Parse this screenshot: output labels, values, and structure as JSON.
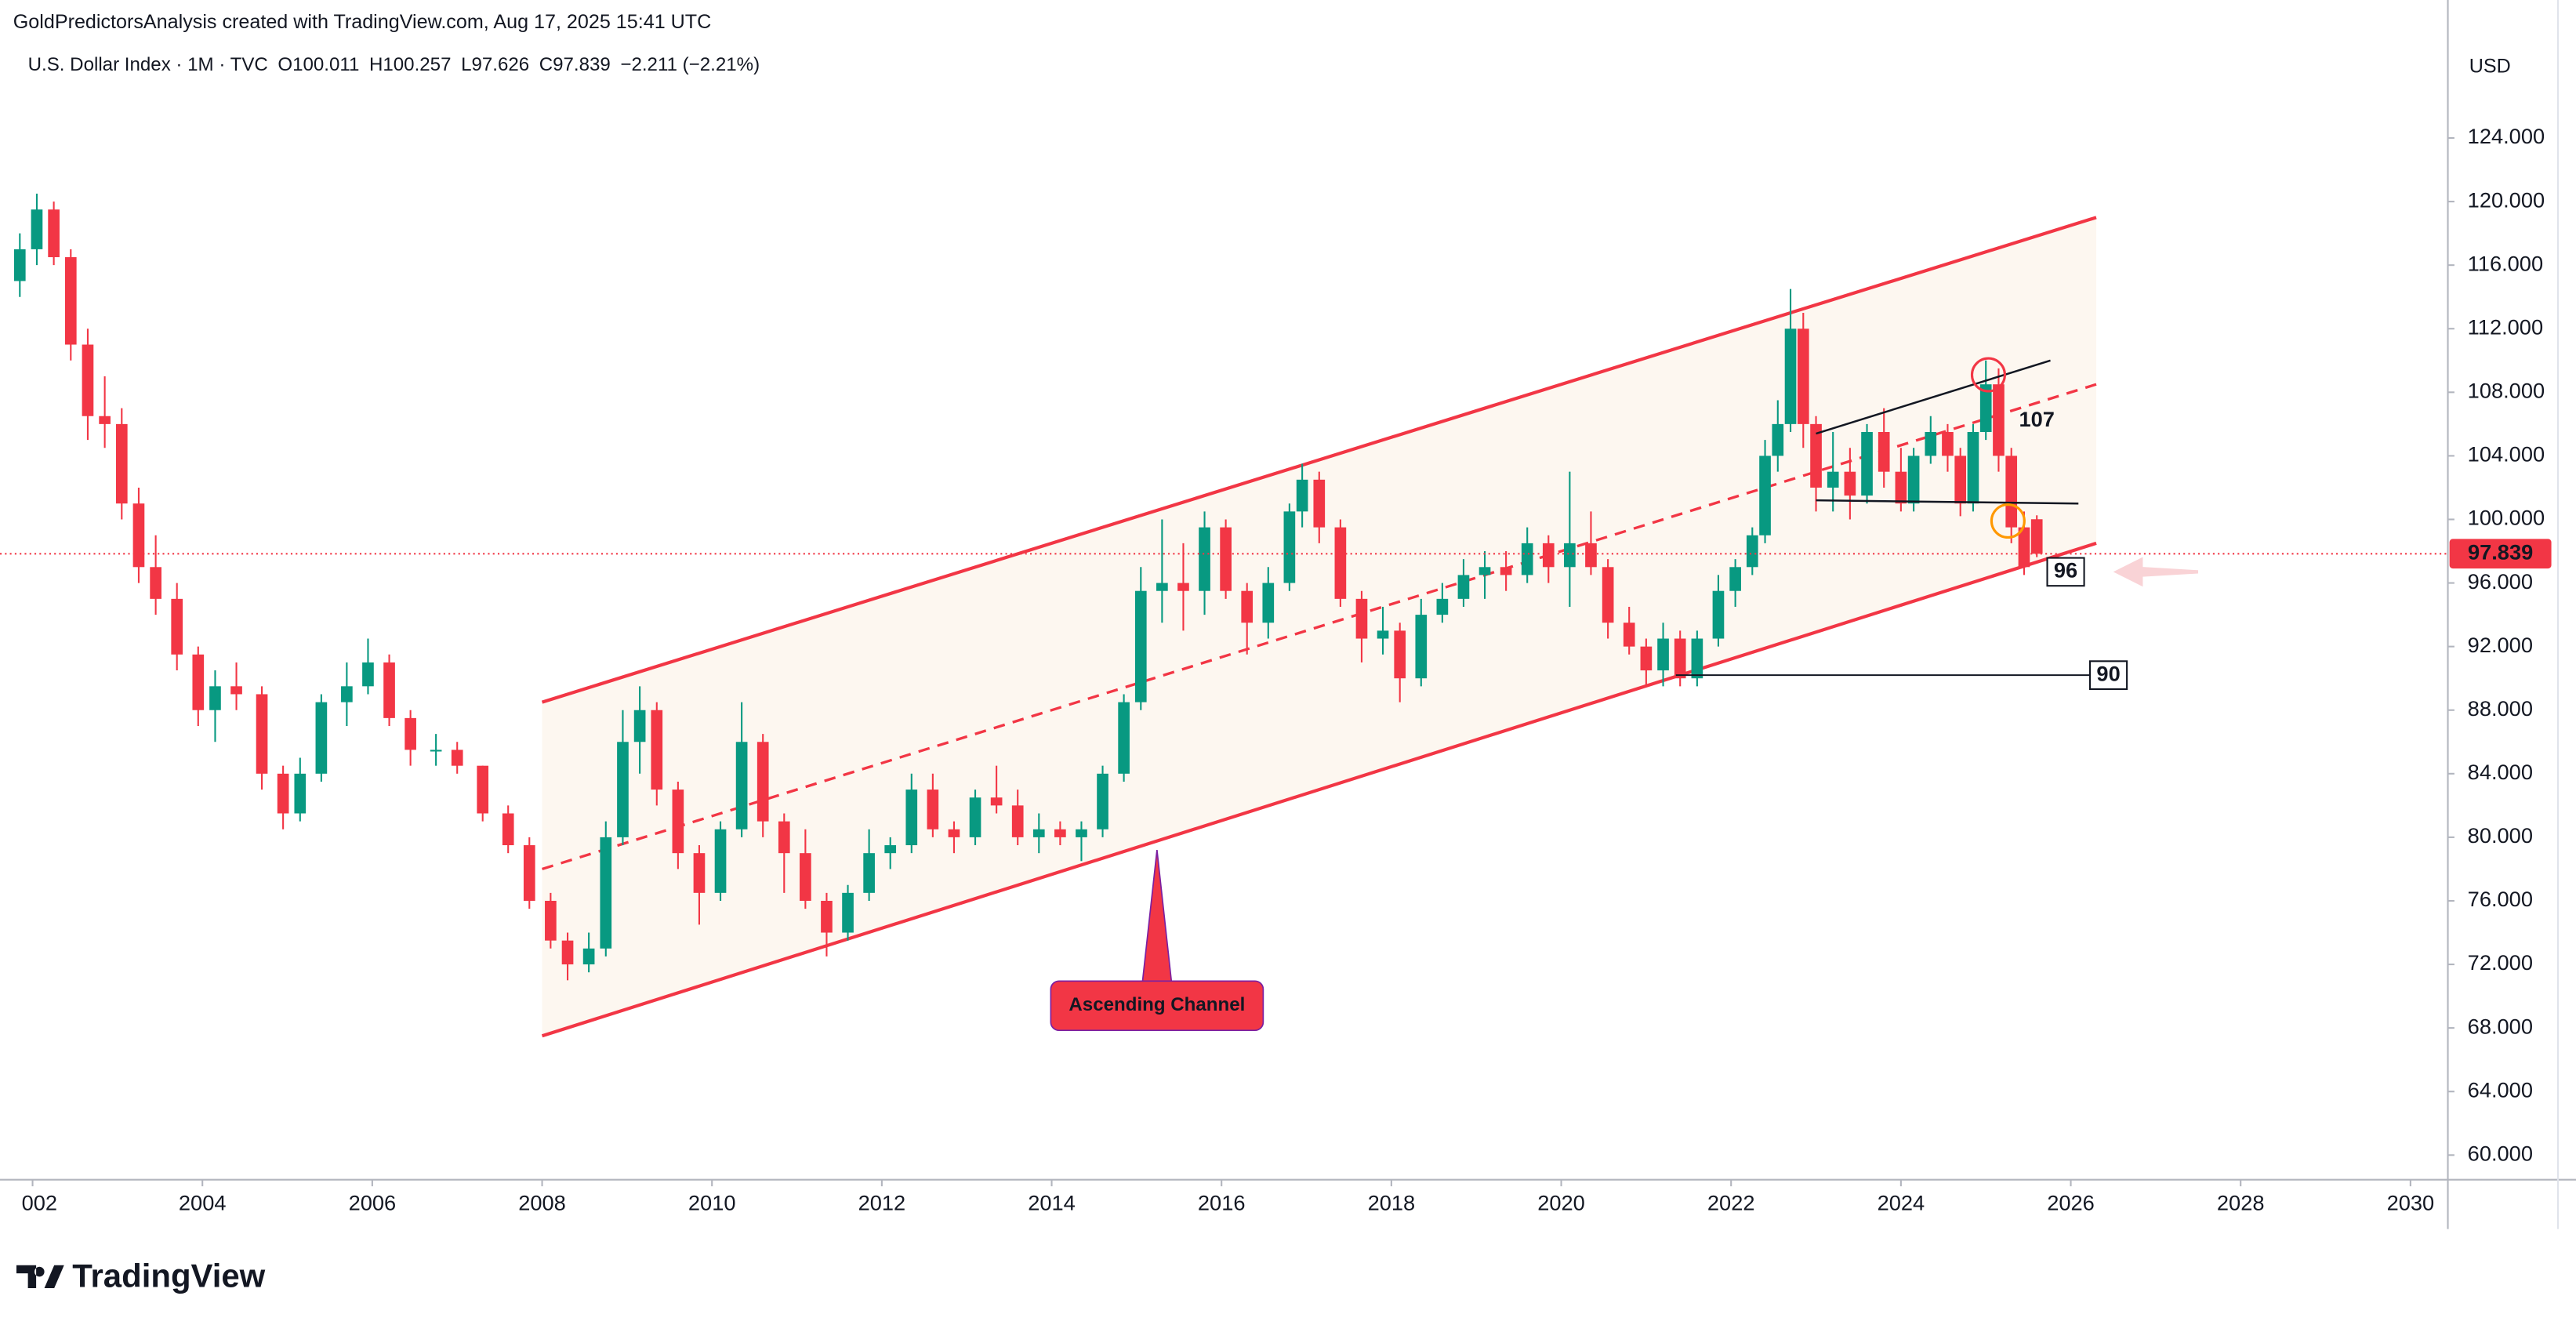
{
  "chart_data": {
    "type": "candlestick",
    "header": "GoldPredictorsAnalysis created with TradingView.com, Aug 17, 2025 15:41 UTC",
    "symbol": "U.S. Dollar Index · 1M · TVC",
    "ohlc_labels": [
      "O100.011",
      "H100.257",
      "L97.626",
      "C97.839",
      "−2.211 (−2.21%)"
    ],
    "currency": "USD",
    "brand": "TradingView",
    "up_color": "#089981",
    "down_color": "#f23645",
    "xlim": [
      2001.81,
      2030.44
    ],
    "ylim": [
      58.45,
      129.58
    ],
    "xticks": [
      {
        "value": 2002,
        "label": "002"
      },
      2004,
      2006,
      2008,
      2010,
      2012,
      2014,
      2016,
      2018,
      2020,
      2022,
      2024,
      2026,
      2028,
      2030
    ],
    "yticks": [
      {
        "value": 60,
        "label": "60.000"
      },
      {
        "value": 64,
        "label": "64.000"
      },
      {
        "value": 68,
        "label": "68.000"
      },
      {
        "value": 72,
        "label": "72.000"
      },
      {
        "value": 76,
        "label": "76.000"
      },
      {
        "value": 80,
        "label": "80.000"
      },
      {
        "value": 84,
        "label": "84.000"
      },
      {
        "value": 88,
        "label": "88.000"
      },
      {
        "value": 92,
        "label": "92.000"
      },
      {
        "value": 96,
        "label": "96.000"
      },
      {
        "value": 100,
        "label": "100.000"
      },
      {
        "value": 104,
        "label": "104.000"
      },
      {
        "value": 108,
        "label": "108.000"
      },
      {
        "value": 112,
        "label": "112.000"
      },
      {
        "value": 116,
        "label": "116.000"
      },
      {
        "value": 120,
        "label": "120.000"
      },
      {
        "value": 124,
        "label": "124.000"
      }
    ],
    "candles": [
      [
        2001.85,
        115,
        118,
        114,
        117
      ],
      [
        2002.05,
        117,
        120.5,
        116,
        119.5
      ],
      [
        2002.25,
        119.5,
        120,
        116,
        116.5
      ],
      [
        2002.45,
        116.5,
        117,
        110,
        111
      ],
      [
        2002.65,
        111,
        112,
        105,
        106.5
      ],
      [
        2002.85,
        106.5,
        109,
        104.5,
        106
      ],
      [
        2003.05,
        106,
        107,
        100,
        101
      ],
      [
        2003.25,
        101,
        102,
        96,
        97
      ],
      [
        2003.45,
        97,
        99,
        94,
        95
      ],
      [
        2003.7,
        95,
        96,
        90.5,
        91.5
      ],
      [
        2003.95,
        91.5,
        92,
        87,
        88
      ],
      [
        2004.15,
        88,
        90.5,
        86,
        89.5
      ],
      [
        2004.4,
        89.5,
        91,
        88,
        89
      ],
      [
        2004.7,
        89,
        89.5,
        83,
        84
      ],
      [
        2004.95,
        84,
        84.5,
        80.5,
        81.5
      ],
      [
        2005.15,
        81.5,
        85,
        81,
        84
      ],
      [
        2005.4,
        84,
        89,
        83.5,
        88.5
      ],
      [
        2005.7,
        88.5,
        91,
        87,
        89.5
      ],
      [
        2005.95,
        89.5,
        92.5,
        89,
        91
      ],
      [
        2006.2,
        91,
        91.5,
        87,
        87.5
      ],
      [
        2006.45,
        87.5,
        88,
        84.5,
        85.5
      ],
      [
        2006.75,
        85.5,
        86.5,
        84.5,
        85.5
      ],
      [
        2007.0,
        85.5,
        86,
        84,
        84.5
      ],
      [
        2007.3,
        84.5,
        84.5,
        81,
        81.5
      ],
      [
        2007.6,
        81.5,
        82,
        79,
        79.5
      ],
      [
        2007.85,
        79.5,
        80,
        75.5,
        76
      ],
      [
        2008.1,
        76,
        76.5,
        73,
        73.5
      ],
      [
        2008.3,
        73.5,
        74,
        71,
        72
      ],
      [
        2008.55,
        72,
        74,
        71.5,
        73
      ],
      [
        2008.75,
        73,
        81,
        72.5,
        80
      ],
      [
        2008.95,
        80,
        88,
        79.5,
        86
      ],
      [
        2009.15,
        86,
        89.5,
        84,
        88
      ],
      [
        2009.35,
        88,
        88.5,
        82,
        83
      ],
      [
        2009.6,
        83,
        83.5,
        78,
        79
      ],
      [
        2009.85,
        79,
        79.5,
        74.5,
        76.5
      ],
      [
        2010.1,
        76.5,
        81,
        76,
        80.5
      ],
      [
        2010.35,
        80.5,
        88.5,
        80,
        86
      ],
      [
        2010.6,
        86,
        86.5,
        80,
        81
      ],
      [
        2010.85,
        81,
        81.5,
        76.5,
        79
      ],
      [
        2011.1,
        79,
        80.5,
        75.5,
        76
      ],
      [
        2011.35,
        76,
        76.5,
        72.5,
        74
      ],
      [
        2011.6,
        74,
        77,
        73.5,
        76.5
      ],
      [
        2011.85,
        76.5,
        80.5,
        76,
        79
      ],
      [
        2012.1,
        79,
        80,
        78,
        79.5
      ],
      [
        2012.35,
        79.5,
        84,
        79,
        83
      ],
      [
        2012.6,
        83,
        84,
        80,
        80.5
      ],
      [
        2012.85,
        80.5,
        81,
        79,
        80
      ],
      [
        2013.1,
        80,
        83,
        79.5,
        82.5
      ],
      [
        2013.35,
        82.5,
        84.5,
        81.5,
        82
      ],
      [
        2013.6,
        82,
        83,
        79.5,
        80
      ],
      [
        2013.85,
        80,
        81.5,
        79,
        80.5
      ],
      [
        2014.1,
        80.5,
        81,
        79.5,
        80
      ],
      [
        2014.35,
        80,
        81,
        78.5,
        80.5
      ],
      [
        2014.6,
        80.5,
        84.5,
        80,
        84
      ],
      [
        2014.85,
        84,
        89,
        83.5,
        88.5
      ],
      [
        2015.05,
        88.5,
        97,
        88,
        95.5
      ],
      [
        2015.3,
        95.5,
        100,
        93.5,
        96
      ],
      [
        2015.55,
        96,
        98.5,
        93,
        95.5
      ],
      [
        2015.8,
        95.5,
        100.5,
        94,
        99.5
      ],
      [
        2016.05,
        99.5,
        100,
        95,
        95.5
      ],
      [
        2016.3,
        95.5,
        96,
        91.5,
        93.5
      ],
      [
        2016.55,
        93.5,
        97,
        92.5,
        96
      ],
      [
        2016.8,
        96,
        101,
        95.5,
        100.5
      ],
      [
        2016.95,
        100.5,
        103.5,
        99.5,
        102.5
      ],
      [
        2017.15,
        102.5,
        103,
        98.5,
        99.5
      ],
      [
        2017.4,
        99.5,
        100,
        94.5,
        95
      ],
      [
        2017.65,
        95,
        95.5,
        91,
        92.5
      ],
      [
        2017.9,
        92.5,
        94.5,
        91.5,
        93
      ],
      [
        2018.1,
        93,
        93.5,
        88.5,
        90
      ],
      [
        2018.35,
        90,
        95,
        89.5,
        94
      ],
      [
        2018.6,
        94,
        96,
        93.5,
        95
      ],
      [
        2018.85,
        95,
        97.5,
        94.5,
        96.5
      ],
      [
        2019.1,
        96.5,
        98,
        95,
        97
      ],
      [
        2019.35,
        97,
        98,
        95.5,
        96.5
      ],
      [
        2019.6,
        96.5,
        99.5,
        96,
        98.5
      ],
      [
        2019.85,
        98.5,
        99,
        96,
        97
      ],
      [
        2020.1,
        97,
        103,
        94.5,
        98.5
      ],
      [
        2020.35,
        98.5,
        100.5,
        96.5,
        97
      ],
      [
        2020.55,
        97,
        97.5,
        92.5,
        93.5
      ],
      [
        2020.8,
        93.5,
        94.5,
        91.5,
        92
      ],
      [
        2021.0,
        92,
        92.5,
        89.5,
        90.5
      ],
      [
        2021.2,
        90.5,
        93.5,
        89.5,
        92.5
      ],
      [
        2021.4,
        92.5,
        93,
        89.5,
        90
      ],
      [
        2021.6,
        90,
        93,
        89.5,
        92.5
      ],
      [
        2021.85,
        92.5,
        96.5,
        92,
        95.5
      ],
      [
        2022.05,
        95.5,
        97.5,
        94.5,
        97
      ],
      [
        2022.25,
        97,
        99.5,
        96.5,
        99
      ],
      [
        2022.4,
        99,
        105,
        98.5,
        104
      ],
      [
        2022.55,
        104,
        107.5,
        103,
        106
      ],
      [
        2022.7,
        106,
        114.5,
        105.5,
        112
      ],
      [
        2022.85,
        112,
        113,
        104.5,
        106
      ],
      [
        2023.0,
        106,
        106.5,
        100.5,
        102
      ],
      [
        2023.2,
        102,
        105.5,
        100.5,
        103
      ],
      [
        2023.4,
        103,
        104.5,
        100,
        101.5
      ],
      [
        2023.6,
        101.5,
        106,
        101,
        105.5
      ],
      [
        2023.8,
        105.5,
        107,
        102,
        103
      ],
      [
        2024.0,
        103,
        104.5,
        100.5,
        101
      ],
      [
        2024.15,
        101,
        104.5,
        100.5,
        104
      ],
      [
        2024.35,
        104,
        106.5,
        103.5,
        105.5
      ],
      [
        2024.55,
        105.5,
        106,
        103,
        104
      ],
      [
        2024.7,
        104,
        104.5,
        100.2,
        101
      ],
      [
        2024.85,
        101,
        106,
        100.5,
        105.5
      ],
      [
        2025.0,
        105.5,
        110,
        105,
        108.5
      ],
      [
        2025.15,
        108.5,
        109.5,
        103,
        104
      ],
      [
        2025.3,
        104,
        104.5,
        98.5,
        99.5
      ],
      [
        2025.45,
        99.5,
        100.5,
        96.5,
        97
      ],
      [
        2025.6,
        100.011,
        100.257,
        97.626,
        97.839
      ]
    ],
    "channel": {
      "color": "#f23645",
      "fill": "#fdf7f0",
      "upper": [
        [
          2008.0,
          88.5
        ],
        [
          2026.3,
          119
        ]
      ],
      "middle": [
        [
          2008.0,
          78
        ],
        [
          2026.3,
          108.5
        ]
      ],
      "lower": [
        [
          2008.0,
          67.5
        ],
        [
          2026.3,
          98.5
        ]
      ],
      "label": "Ascending Channel",
      "label_point": [
        2015.24,
        69.4
      ],
      "pointer_tip": [
        2015.24,
        79.2
      ]
    },
    "pattern_lines": [
      [
        [
          2023.0,
          105.4
        ],
        [
          2025.76,
          110.0
        ]
      ],
      [
        [
          2023.0,
          101.2
        ],
        [
          2026.09,
          101.0
        ]
      ]
    ],
    "circles": [
      {
        "point": [
          2025.03,
          109.1
        ],
        "color": "#f23645"
      },
      {
        "point": [
          2025.26,
          99.9
        ],
        "color": "#ff9800"
      }
    ],
    "levels": [
      {
        "label": "90",
        "line": [
          [
            2021.35,
            90.2
          ],
          [
            2026.25,
            90.2
          ]
        ],
        "boxed": true
      },
      {
        "label": "96",
        "point": [
          2025.94,
          96.7
        ],
        "boxed": true
      },
      {
        "label": "107",
        "point": [
          2025.6,
          106.2
        ],
        "boxed": false
      }
    ],
    "arrow": {
      "from": [
        2027.5,
        96.7
      ],
      "to": [
        2026.5,
        96.7
      ],
      "color": "#f8c8cc"
    }
  }
}
